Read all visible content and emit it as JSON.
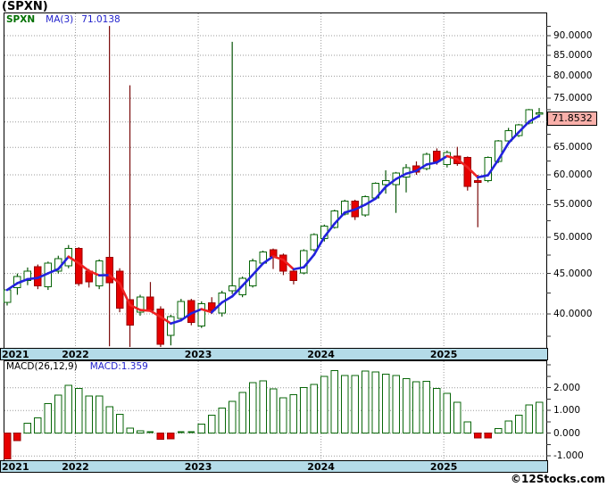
{
  "title": "(SPXN)",
  "legend": {
    "symbol": "SPXN",
    "ma": "MA(3)",
    "ma_value": "71.0138"
  },
  "price_badge": "71.8532",
  "macd_panel": {
    "label": "MACD(26,12,9)",
    "value": "MACD:1.359"
  },
  "copyright": "©12Stocks.com",
  "price_axis": {
    "tick_values": [
      90,
      85,
      80,
      75,
      65,
      60,
      55,
      50,
      45,
      40
    ],
    "tick_labels": [
      "90.0000",
      "85.0000",
      "80.0000",
      "75.0000",
      "65.0000",
      "60.0000",
      "55.0000",
      "50.0000",
      "45.0000",
      "40.0000"
    ],
    "gridline_values": [
      90,
      85,
      80,
      75,
      70,
      65,
      60,
      55,
      50,
      45,
      40
    ],
    "minor_tick_step": 2.5
  },
  "macd_axis": {
    "tick_values": [
      2,
      1,
      0,
      -1
    ],
    "tick_labels": [
      "2.000",
      "1.000",
      "0.000",
      "-1.000"
    ],
    "minor_tick_step": 0.5
  },
  "x_axis": {
    "years": [
      "2021",
      "2022",
      "2023",
      "2024",
      "2025"
    ]
  },
  "colors": {
    "up": "#076607",
    "up_fill": "#ffffff",
    "down": "#e60000",
    "down_border": "#990000",
    "wick_up": "#075507",
    "wick_down": "#7a0a0a",
    "ma_up": "#2222dd",
    "ma_down": "#ee2222",
    "grid": "#9a9a9a",
    "frame": "#000000",
    "band": "#b4dbe8",
    "badge_bg": "#f9b0aa",
    "legend_symbol": "#007000",
    "legend_value": "#2222cc",
    "macd_pos": "#076607",
    "macd_neg": "#e60000",
    "macd_neg_border": "#990000"
  },
  "chart_data": [
    {
      "type": "candlestick",
      "title": "SPXN monthly candles with MA(3) overlay",
      "yscale": "log",
      "ylim": [
        36,
        96
      ],
      "ma_period": 3,
      "last_price": 71.8532,
      "ma_last": 71.0138,
      "x": [
        "2021-06",
        "2021-07",
        "2021-08",
        "2021-09",
        "2021-10",
        "2021-11",
        "2021-12",
        "2022-01",
        "2022-02",
        "2022-03",
        "2022-04",
        "2022-05",
        "2022-06",
        "2022-07",
        "2022-08",
        "2022-09",
        "2022-10",
        "2022-11",
        "2022-12",
        "2023-01",
        "2023-02",
        "2023-03",
        "2023-04",
        "2023-05",
        "2023-06",
        "2023-07",
        "2023-08",
        "2023-09",
        "2023-10",
        "2023-11",
        "2023-12",
        "2024-01",
        "2024-02",
        "2024-03",
        "2024-04",
        "2024-05",
        "2024-06",
        "2024-07",
        "2024-08",
        "2024-09",
        "2024-10",
        "2024-11",
        "2024-12",
        "2025-01",
        "2025-02",
        "2025-03",
        "2025-04",
        "2025-05",
        "2025-06",
        "2025-07",
        "2025-08",
        "2025-09",
        "2025-10"
      ],
      "open": [
        41.4,
        43.2,
        44.1,
        45.9,
        43.3,
        45.3,
        46.0,
        48.4,
        45.3,
        43.4,
        47.2,
        45.3,
        41.7,
        40.2,
        42.0,
        40.6,
        37.6,
        39.5,
        41.6,
        38.6,
        41.3,
        40.1,
        42.8,
        42.3,
        43.4,
        46.4,
        48.2,
        47.5,
        45.3,
        45.1,
        48.2,
        49.8,
        51.5,
        53.5,
        55.6,
        53.4,
        56.1,
        58.3,
        58.3,
        59.6,
        61.6,
        61.1,
        64.3,
        61.8,
        63.4,
        63.1,
        59.0,
        59.0,
        62.4,
        66.2,
        67.3,
        69.8,
        71.8
      ],
      "high": [
        43.0,
        45.0,
        45.8,
        46.2,
        46.6,
        47.4,
        48.9,
        48.6,
        45.6,
        46.9,
        92.6,
        45.7,
        77.9,
        42.3,
        43.9,
        40.9,
        39.9,
        41.8,
        41.8,
        41.5,
        42.0,
        42.8,
        88.4,
        44.6,
        47.0,
        48.1,
        48.4,
        47.7,
        45.6,
        48.3,
        50.6,
        51.9,
        54.2,
        55.8,
        55.8,
        56.5,
        58.7,
        60.8,
        60.5,
        61.9,
        62.4,
        64.0,
        64.8,
        64.4,
        65.1,
        63.3,
        60.0,
        63.3,
        66.4,
        68.8,
        69.6,
        72.7,
        72.9
      ],
      "low": [
        41.0,
        42.3,
        43.5,
        43.0,
        42.9,
        45.0,
        45.7,
        43.4,
        43.2,
        43.0,
        36.4,
        40.2,
        35.7,
        39.8,
        40.2,
        36.3,
        36.5,
        39.2,
        38.7,
        38.4,
        40.0,
        39.7,
        42.4,
        42.0,
        43.2,
        46.2,
        45.6,
        44.8,
        43.6,
        44.9,
        48.0,
        49.4,
        51.3,
        53.3,
        52.6,
        53.1,
        55.9,
        56.8,
        53.7,
        57.0,
        60.0,
        60.8,
        61.8,
        61.3,
        61.6,
        57.3,
        51.5,
        58.7,
        62.1,
        65.9,
        67.0,
        69.5,
        70.9
      ],
      "close": [
        42.9,
        44.6,
        45.3,
        43.4,
        46.4,
        47.0,
        48.4,
        43.7,
        43.9,
        46.7,
        43.8,
        40.7,
        38.7,
        42.0,
        40.4,
        36.6,
        39.7,
        41.5,
        39.0,
        41.2,
        40.4,
        42.5,
        43.4,
        44.4,
        46.7,
        47.9,
        47.3,
        45.3,
        44.1,
        48.1,
        50.4,
        51.7,
        54.0,
        55.6,
        53.1,
        56.3,
        58.5,
        59.0,
        60.3,
        61.3,
        60.5,
        63.7,
        62.4,
        64.0,
        62.0,
        58.0,
        58.7,
        63.1,
        66.2,
        68.2,
        69.4,
        72.5,
        71.85
      ]
    },
    {
      "type": "bar",
      "title": "MACD(26,12,9) histogram",
      "ylim": [
        -1.3,
        2.9
      ],
      "zero_line": true,
      "macd_last": 1.359,
      "x": "same months as chart_data[0].x",
      "values": [
        -1.13,
        -0.33,
        0.44,
        0.67,
        1.3,
        1.67,
        2.1,
        1.96,
        1.64,
        1.64,
        1.16,
        0.84,
        0.23,
        0.1,
        0.05,
        -0.26,
        -0.24,
        0.05,
        0.02,
        0.4,
        0.8,
        1.1,
        1.4,
        1.8,
        2.23,
        2.3,
        1.94,
        1.56,
        1.7,
        2.0,
        2.14,
        2.5,
        2.75,
        2.54,
        2.54,
        2.74,
        2.7,
        2.6,
        2.54,
        2.4,
        2.27,
        2.29,
        1.96,
        1.76,
        1.36,
        0.49,
        -0.2,
        -0.2,
        0.2,
        0.53,
        0.8,
        1.24,
        1.359
      ]
    }
  ]
}
